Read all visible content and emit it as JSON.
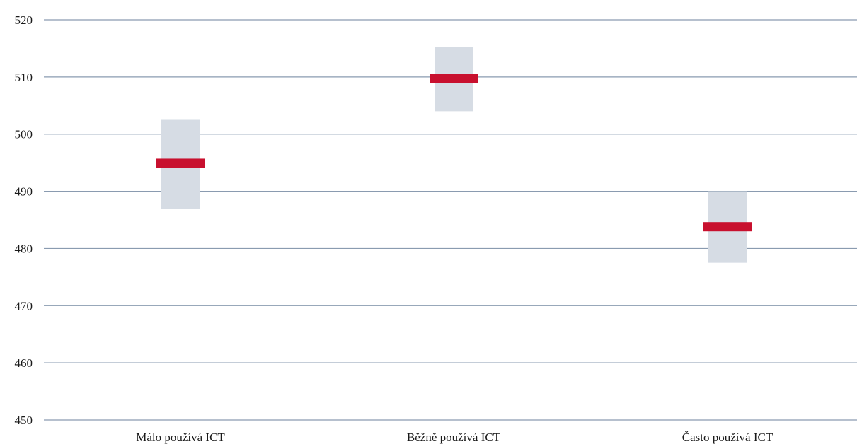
{
  "colors": {
    "gridline": "#8a9bb0",
    "range_box": "#d6dce4",
    "mean_marker": "#c8102e",
    "text": "#1a1a1a"
  },
  "chart_data": {
    "type": "range-with-mean",
    "title": "",
    "xlabel": "",
    "ylabel": "",
    "ylim": [
      450,
      520
    ],
    "yticks": [
      450,
      460,
      470,
      480,
      490,
      500,
      510,
      520
    ],
    "grid": true,
    "legend": "none",
    "categories": [
      "Málo používá ICT",
      "Běžně používá ICT",
      "Často používá ICT"
    ],
    "series": [
      {
        "mean": 494.9,
        "low": 486.9,
        "high": 502.5
      },
      {
        "mean": 509.7,
        "low": 504.0,
        "high": 515.2
      },
      {
        "mean": 483.8,
        "low": 477.5,
        "high": 490.0
      }
    ]
  }
}
